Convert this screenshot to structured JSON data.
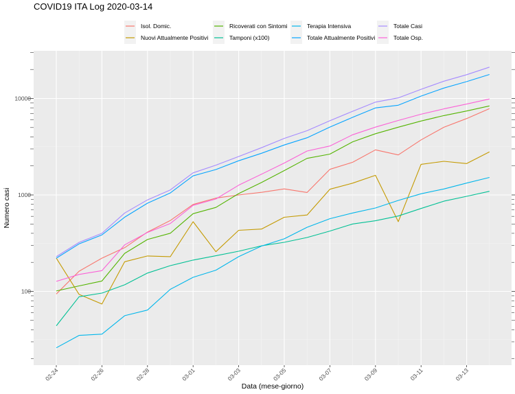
{
  "chart_data": {
    "type": "line",
    "title": "COVID19 ITA Log 2020-03-14",
    "xlabel": "Data (mese-giorno)",
    "ylabel": "Numero casi",
    "y_scale": "log10",
    "ylim": [
      20,
      30000
    ],
    "grid": true,
    "legend_position": "top",
    "x_tick_labels": [
      "02-24",
      "02-26",
      "02-28",
      "03-01",
      "03-03",
      "03-05",
      "03-07",
      "03-09",
      "03-11",
      "03-13"
    ],
    "y_tick_labels": [
      "100",
      "1000",
      "10000"
    ],
    "y_ticks": [
      100,
      1000,
      10000
    ],
    "x": [
      "02-24",
      "02-25",
      "02-26",
      "02-27",
      "02-28",
      "02-29",
      "03-01",
      "03-02",
      "03-03",
      "03-04",
      "03-05",
      "03-06",
      "03-07",
      "03-08",
      "03-09",
      "03-10",
      "03-11",
      "03-12",
      "03-13",
      "03-14"
    ],
    "series": [
      {
        "name": "Isol. Domic.",
        "color": "#F8766D",
        "values": [
          94,
          162,
          221,
          284,
          412,
          543,
          798,
          927,
          1000,
          1065,
          1155,
          1060,
          1843,
          2180,
          2936,
          2599,
          3724,
          5036,
          6201,
          7860
        ]
      },
      {
        "name": "Nuovi Attualmente Positivi",
        "color": "#C49A00",
        "values": [
          221,
          93,
          74,
          203,
          233,
          229,
          528,
          258,
          430,
          443,
          587,
          620,
          1145,
          1326,
          1598,
          529,
          2076,
          2234,
          2114,
          2795
        ]
      },
      {
        "name": "Ricoverati con Sintomi",
        "color": "#53B400",
        "values": [
          101,
          114,
          128,
          248,
          345,
          401,
          639,
          742,
          1034,
          1346,
          1790,
          2394,
          2651,
          3557,
          4316,
          5038,
          5838,
          6650,
          7426,
          8372
        ]
      },
      {
        "name": "Tamponi (x100)",
        "color": "#00C094",
        "values": [
          44,
          88,
          96,
          117,
          155,
          185,
          211,
          234,
          261,
          297,
          323,
          362,
          422,
          500,
          540,
          605,
          724,
          862,
          968,
          1091
        ]
      },
      {
        "name": "Terapia Intensiva",
        "color": "#00B6EB",
        "values": [
          26,
          35,
          36,
          56,
          64,
          105,
          140,
          166,
          229,
          295,
          351,
          462,
          567,
          650,
          733,
          877,
          1028,
          1153,
          1328,
          1518
        ]
      },
      {
        "name": "Totale Attualmente Positivi",
        "color": "#06A4FF",
        "values": [
          221,
          311,
          385,
          588,
          821,
          1049,
          1577,
          1835,
          2263,
          2706,
          3296,
          3916,
          5061,
          6387,
          7985,
          8514,
          10590,
          12839,
          14955,
          17750
        ]
      },
      {
        "name": "Totale Casi",
        "color": "#A58AFF",
        "values": [
          229,
          322,
          400,
          650,
          888,
          1128,
          1694,
          2036,
          2502,
          3089,
          3858,
          4636,
          5883,
          7375,
          9172,
          10149,
          12462,
          15113,
          17660,
          21157
        ]
      },
      {
        "name": "Totale Osp.",
        "color": "#FB61D7",
        "values": [
          127,
          150,
          164,
          304,
          409,
          506,
          779,
          908,
          1263,
          1641,
          2141,
          2856,
          3218,
          4207,
          5049,
          5915,
          6866,
          7803,
          8754,
          9890
        ]
      }
    ]
  }
}
